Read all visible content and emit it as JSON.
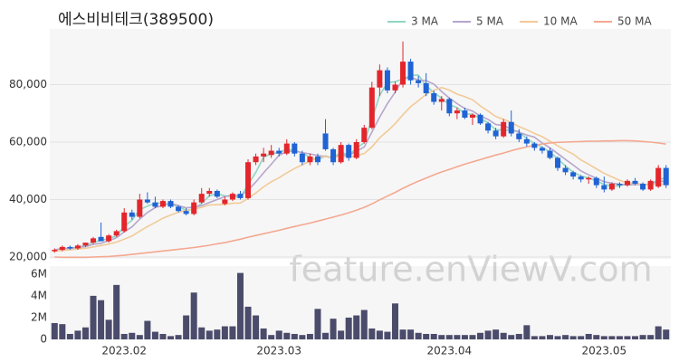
{
  "chart_data": [
    {
      "type": "candlestick",
      "title": "에스비비테크(389500)",
      "watermark": "feature.enViewV.com",
      "up_color": "#e3262c",
      "down_color": "#1f63d4",
      "legend": "top-right",
      "grid": true,
      "ylim": [
        20000,
        100000
      ],
      "yticks": [
        {
          "value": 20000,
          "label": "20,000"
        },
        {
          "value": 40000,
          "label": "40,000"
        },
        {
          "value": 60000,
          "label": "60,000"
        },
        {
          "value": 80000,
          "label": "80,000"
        }
      ],
      "open": [
        22000,
        22500,
        23500,
        23000,
        24000,
        25000,
        27000,
        25500,
        27500,
        29000,
        35500,
        34000,
        40000,
        39000,
        37500,
        39500,
        37500,
        36000,
        35000,
        39000,
        42000,
        43000,
        38500,
        40000,
        42000,
        40500,
        53000,
        55000,
        55500,
        57000,
        56000,
        59500,
        56000,
        53000,
        55000,
        63000,
        57500,
        53000,
        59000,
        54500,
        60000,
        65000,
        79000,
        85000,
        78000,
        80000,
        88000,
        81500,
        80500,
        77000,
        74000,
        75000,
        70000,
        71000,
        68500,
        69500,
        66500,
        64000,
        62000,
        67000,
        63000,
        61000,
        59500,
        58000,
        57000,
        54500,
        51000,
        49500,
        48000,
        47000,
        47500,
        45000,
        43500,
        45500,
        45000,
        46500,
        45500,
        43500,
        44500,
        51000
      ],
      "high": [
        23000,
        24000,
        24000,
        24500,
        25000,
        27000,
        32000,
        28000,
        29500,
        37000,
        36500,
        42000,
        42500,
        41000,
        40000,
        40000,
        38000,
        37000,
        40000,
        44000,
        44000,
        43500,
        41000,
        42500,
        43000,
        54000,
        56000,
        58000,
        59000,
        58000,
        61000,
        60000,
        57000,
        56000,
        56000,
        68000,
        58000,
        60000,
        59500,
        61000,
        66000,
        81000,
        87000,
        86000,
        81000,
        95000,
        89000,
        83000,
        84000,
        78000,
        76000,
        75500,
        72000,
        72000,
        70000,
        70000,
        67000,
        65000,
        68000,
        71000,
        64500,
        62000,
        60000,
        58500,
        58000,
        55000,
        52000,
        50000,
        48500,
        48000,
        48000,
        48000,
        46000,
        46000,
        47000,
        47500,
        46000,
        47000,
        52000,
        52000
      ],
      "low": [
        21500,
        22000,
        22500,
        22500,
        23500,
        24500,
        26000,
        25000,
        27000,
        28500,
        33000,
        33500,
        38500,
        37000,
        37000,
        37000,
        35500,
        34500,
        34500,
        38500,
        41000,
        40500,
        38000,
        39500,
        40000,
        40000,
        52000,
        53000,
        54500,
        55000,
        55500,
        55000,
        52000,
        52000,
        52000,
        57000,
        52000,
        52500,
        53500,
        54000,
        59500,
        64500,
        76000,
        77000,
        77000,
        79000,
        80000,
        79000,
        76000,
        73000,
        71000,
        69000,
        68000,
        68000,
        66000,
        66000,
        63000,
        61000,
        61500,
        62000,
        60000,
        58500,
        57000,
        56000,
        54000,
        50000,
        48500,
        47000,
        46000,
        45500,
        44000,
        42500,
        43000,
        44000,
        44500,
        45000,
        43000,
        43000,
        44000,
        44000
      ],
      "close": [
        22500,
        23500,
        23000,
        24000,
        25000,
        26500,
        25500,
        27500,
        29000,
        35500,
        34000,
        40000,
        39000,
        37500,
        39500,
        37500,
        36000,
        35000,
        39000,
        42000,
        43000,
        41000,
        40000,
        42000,
        40500,
        53000,
        55000,
        56000,
        57000,
        56000,
        59500,
        56000,
        53000,
        55000,
        53000,
        57500,
        53000,
        59000,
        54500,
        60000,
        65000,
        79000,
        85000,
        78000,
        80000,
        88000,
        81500,
        80500,
        77000,
        74000,
        75000,
        70000,
        71000,
        68500,
        69500,
        66500,
        64000,
        62000,
        67000,
        63000,
        61000,
        59500,
        58000,
        57000,
        54500,
        51000,
        49500,
        48000,
        47000,
        47500,
        45000,
        43500,
        45500,
        45000,
        46500,
        45500,
        43500,
        46500,
        51000,
        45000
      ],
      "series": [
        {
          "name": "3 MA",
          "color": "#8fd6c4",
          "values": [
            22500,
            23000,
            23000,
            23500,
            24000,
            25200,
            25700,
            26500,
            27300,
            30700,
            32800,
            36500,
            37700,
            38800,
            38700,
            38200,
            37700,
            36200,
            36700,
            38700,
            41300,
            42000,
            41300,
            41000,
            40800,
            45200,
            49500,
            54700,
            56000,
            56300,
            57500,
            57200,
            56200,
            54700,
            53700,
            55200,
            54500,
            56500,
            55500,
            57800,
            59800,
            68000,
            76300,
            80700,
            81000,
            82000,
            83200,
            83300,
            79700,
            77200,
            75300,
            73000,
            72000,
            69800,
            69700,
            68200,
            66700,
            64200,
            64300,
            64000,
            63700,
            61200,
            59500,
            58200,
            56500,
            54200,
            51700,
            49500,
            48200,
            47500,
            46500,
            45300,
            44700,
            44700,
            45700,
            45700,
            45200,
            45200,
            47000,
            47500
          ]
        },
        {
          "name": "5 MA",
          "color": "#b6a6cc",
          "values": [
            22500,
            23000,
            23000,
            23300,
            23600,
            24400,
            24800,
            25700,
            26700,
            28800,
            30500,
            33200,
            35500,
            37200,
            38000,
            38700,
            37900,
            37100,
            37400,
            37900,
            39000,
            40000,
            41000,
            41600,
            41300,
            43300,
            46100,
            49300,
            52300,
            55400,
            56700,
            56900,
            56300,
            55900,
            55300,
            55000,
            54500,
            55500,
            55400,
            56800,
            58300,
            63500,
            68700,
            73400,
            77400,
            82000,
            82500,
            81600,
            81400,
            80200,
            77600,
            75300,
            73400,
            71700,
            70800,
            69100,
            67900,
            66100,
            65800,
            64500,
            63400,
            62500,
            61700,
            59700,
            58000,
            56000,
            54000,
            52000,
            50000,
            48600,
            47400,
            46200,
            45700,
            45300,
            45100,
            45200,
            45200,
            45400,
            46400,
            46300
          ]
        },
        {
          "name": "10 MA",
          "color": "#f2ca98",
          "values": [
            22000,
            22300,
            22500,
            22800,
            23000,
            23500,
            24000,
            24500,
            25200,
            26200,
            27300,
            29000,
            30600,
            32000,
            33500,
            34600,
            35600,
            36300,
            36700,
            37300,
            38100,
            38200,
            38300,
            38700,
            38800,
            40400,
            42300,
            44400,
            46200,
            47600,
            49300,
            50800,
            52100,
            53400,
            54600,
            55000,
            54800,
            55100,
            54800,
            55200,
            56000,
            58300,
            61500,
            63800,
            66400,
            69500,
            72300,
            74400,
            76600,
            78000,
            79000,
            78100,
            76700,
            75800,
            74700,
            72600,
            70800,
            68900,
            67900,
            66800,
            65400,
            64300,
            63000,
            61900,
            60300,
            58700,
            57200,
            55800,
            53800,
            52300,
            50700,
            49100,
            47900,
            46700,
            45800,
            45600,
            45300,
            45100,
            45500,
            45300
          ]
        },
        {
          "name": "50 MA",
          "color": "#f4a890",
          "values": [
            20000,
            19900,
            19900,
            19900,
            19900,
            20000,
            20100,
            20200,
            20400,
            20600,
            20900,
            21200,
            21500,
            21800,
            22100,
            22400,
            22700,
            23000,
            23300,
            23700,
            24100,
            24600,
            25000,
            25600,
            26200,
            26900,
            27500,
            28100,
            28700,
            29300,
            30000,
            30600,
            31200,
            31800,
            32500,
            33200,
            33900,
            34600,
            35400,
            36300,
            37300,
            38500,
            39900,
            41200,
            42500,
            43900,
            45200,
            46400,
            47500,
            48600,
            49600,
            50500,
            51400,
            52300,
            53100,
            53900,
            54700,
            55500,
            56200,
            57000,
            57700,
            58300,
            58900,
            59300,
            59700,
            59900,
            60000,
            60100,
            60200,
            60300,
            60300,
            60400,
            60400,
            60500,
            60500,
            60400,
            60200,
            60000,
            59700,
            59300
          ]
        }
      ]
    },
    {
      "type": "bar",
      "color": "#4b4b6b",
      "categories": [
        null,
        null,
        null,
        null,
        null,
        null,
        null,
        null,
        null,
        "2023.02",
        null,
        null,
        null,
        null,
        null,
        null,
        null,
        null,
        null,
        null,
        null,
        null,
        null,
        null,
        null,
        null,
        null,
        null,
        null,
        "2023.03",
        null,
        null,
        null,
        null,
        null,
        null,
        null,
        null,
        null,
        null,
        null,
        null,
        null,
        null,
        null,
        null,
        null,
        null,
        null,
        null,
        null,
        "2023.04",
        null,
        null,
        null,
        null,
        null,
        null,
        null,
        null,
        null,
        null,
        null,
        null,
        null,
        null,
        null,
        null,
        null,
        null,
        null,
        "2023.05",
        null,
        null,
        null,
        null,
        null,
        null,
        null,
        null
      ],
      "values": [
        1500000,
        1400000,
        500000,
        800000,
        1100000,
        4000000,
        3600000,
        1800000,
        5000000,
        500000,
        600000,
        400000,
        1700000,
        700000,
        500000,
        300000,
        400000,
        2200000,
        4300000,
        1100000,
        800000,
        900000,
        1200000,
        1200000,
        6100000,
        3000000,
        2200000,
        1000000,
        400000,
        800000,
        600000,
        500000,
        400000,
        500000,
        2800000,
        600000,
        1900000,
        800000,
        2000000,
        2200000,
        2700000,
        1000000,
        800000,
        700000,
        3300000,
        900000,
        900000,
        600000,
        500000,
        500000,
        400000,
        400000,
        400000,
        400000,
        400000,
        600000,
        800000,
        900000,
        600000,
        400000,
        500000,
        1300000,
        300000,
        300000,
        400000,
        300000,
        400000,
        300000,
        300000,
        500000,
        400000,
        300000,
        300000,
        300000,
        300000,
        300000,
        400000,
        400000,
        1200000,
        900000
      ],
      "ylim": [
        0,
        6400000
      ],
      "yticks": [
        0,
        {
          "value": 2000000,
          "label": "2M"
        },
        {
          "value": 4000000,
          "label": "4M"
        },
        {
          "value": 6000000,
          "label": "6M"
        }
      ]
    }
  ]
}
